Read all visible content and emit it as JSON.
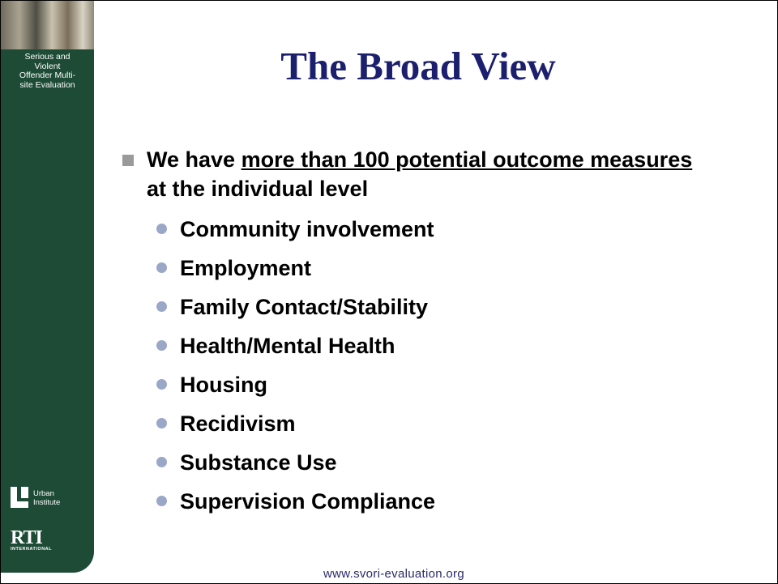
{
  "sidebar": {
    "caption": [
      "Serious and",
      "Violent",
      "Offender Multi-",
      "site Evaluation"
    ],
    "urban_logo": [
      "Urban",
      "Institute"
    ],
    "rti_logo": {
      "name": "RTI",
      "subtitle": "INTERNATIONAL"
    }
  },
  "title": "The Broad View",
  "main_bullet": {
    "before": "We have ",
    "underlined": "more than 100 potential outcome measures ",
    "after": "at the individual level"
  },
  "sub_bullets": [
    "Community involvement",
    "Employment",
    "Family Contact/Stability",
    "Health/Mental Health",
    "Housing",
    "Recidivism",
    "Substance Use",
    "Supervision Compliance"
  ],
  "footer": "www.svori-evaluation.org"
}
